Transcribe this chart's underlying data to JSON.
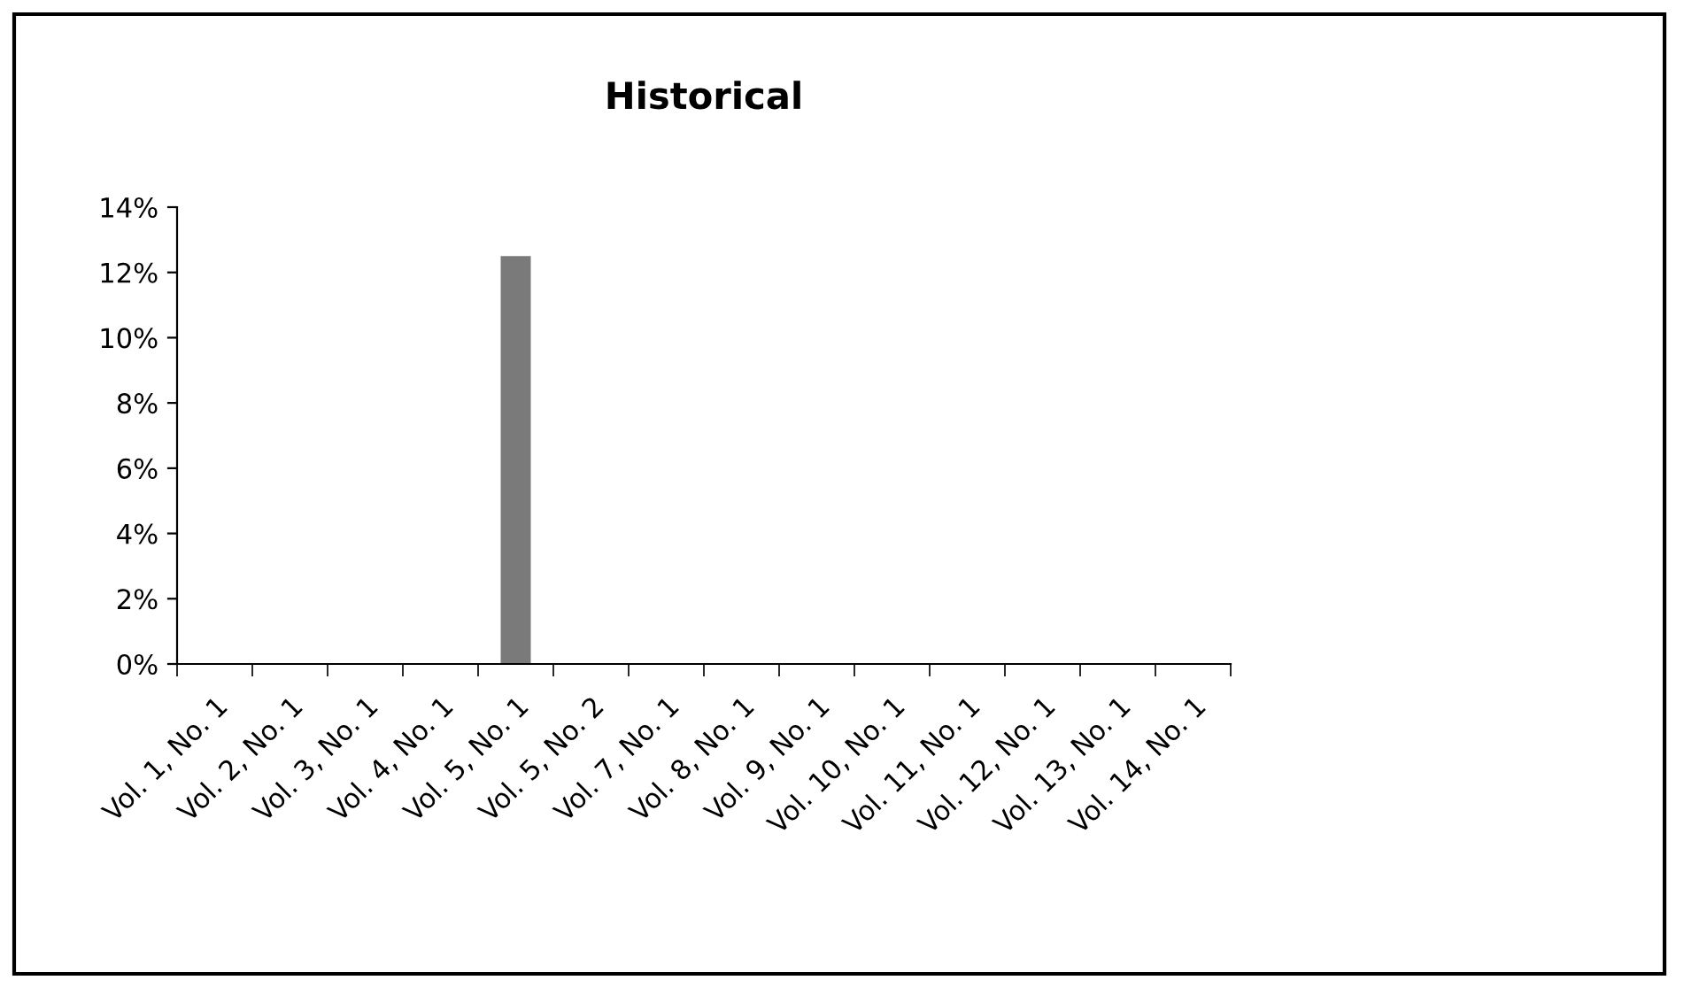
{
  "chart_data": {
    "type": "bar",
    "title": "Historical",
    "categories": [
      "Vol. 1, No. 1",
      "Vol. 2, No. 1",
      "Vol. 3, No. 1",
      "Vol. 4, No. 1",
      "Vol. 5, No. 1",
      "Vol. 5, No. 2",
      "Vol. 7, No. 1",
      "Vol. 8, No. 1",
      "Vol. 9, No. 1",
      "Vol. 10, No. 1",
      "Vol. 11, No. 1",
      "Vol. 12, No. 1",
      "Vol. 13, No. 1",
      "Vol. 14, No. 1"
    ],
    "values": [
      0,
      0,
      0,
      0,
      12.5,
      0,
      0,
      0,
      0,
      0,
      0,
      0,
      0,
      0
    ],
    "color": "#7a7a7a",
    "ylim": [
      0,
      14
    ],
    "yticks": [
      {
        "value": 0,
        "label": "0%"
      },
      {
        "value": 2,
        "label": "2%"
      },
      {
        "value": 4,
        "label": "4%"
      },
      {
        "value": 6,
        "label": "6%"
      },
      {
        "value": 8,
        "label": "8%"
      },
      {
        "value": 10,
        "label": "10%"
      },
      {
        "value": 12,
        "label": "12%"
      },
      {
        "value": 14,
        "label": "14%"
      }
    ],
    "grid": false,
    "legend": false
  }
}
